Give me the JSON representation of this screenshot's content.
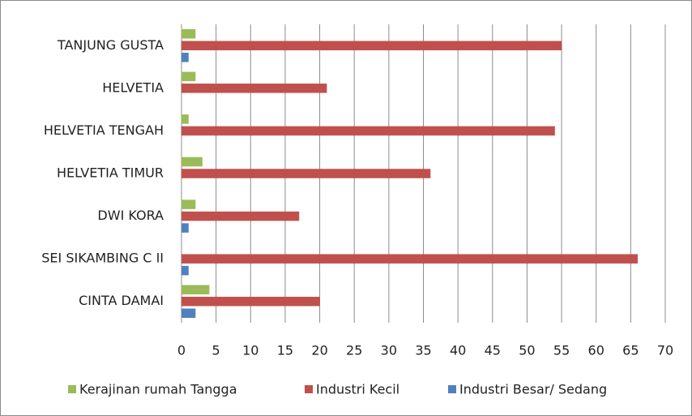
{
  "chart_data": {
    "type": "bar",
    "orientation": "horizontal",
    "categories": [
      "TANJUNG GUSTA",
      "HELVETIA",
      "HELVETIA TENGAH",
      "HELVETIA TIMUR",
      "DWI KORA",
      "SEI SIKAMBING C II",
      "CINTA DAMAI"
    ],
    "series": [
      {
        "name": "Kerajinan rumah Tangga",
        "color": "#9bbb59",
        "values": [
          2,
          2,
          1,
          3,
          2,
          0,
          4
        ]
      },
      {
        "name": "Industri Kecil",
        "color": "#c0504d",
        "values": [
          55,
          21,
          54,
          36,
          17,
          66,
          20
        ]
      },
      {
        "name": "Industri Besar/ Sedang",
        "color": "#4f81bd",
        "values": [
          1,
          0,
          0,
          0,
          1,
          1,
          2
        ]
      }
    ],
    "xlim": [
      0,
      70
    ],
    "xticks": [
      0,
      5,
      10,
      15,
      20,
      25,
      30,
      35,
      40,
      45,
      50,
      55,
      60,
      65,
      70
    ],
    "grid": true,
    "legend": "bottom"
  }
}
